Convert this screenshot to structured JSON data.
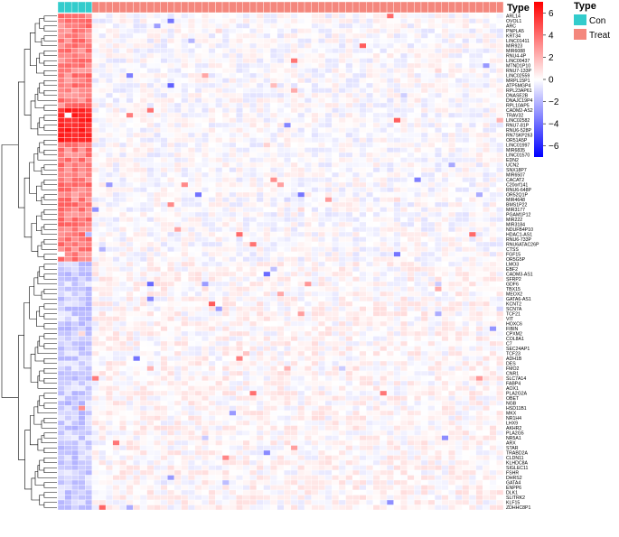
{
  "chart_data": {
    "type": "heatmap",
    "annotation": {
      "label": "Type",
      "legend_title": "Type",
      "groups": [
        {
          "name": "Con",
          "count": 5,
          "color": "#33cccc"
        },
        {
          "name": "Treat",
          "count": 60,
          "color": "#f4877d"
        }
      ]
    },
    "color_scale": {
      "ticks": [
        6,
        4,
        2,
        0,
        -2,
        -4,
        -6
      ],
      "range": [
        -7,
        7
      ],
      "stops": [
        {
          "value": -7,
          "color": "#0000ff"
        },
        {
          "value": 0,
          "color": "#ffffff"
        },
        {
          "value": 7,
          "color": "#ff0000"
        }
      ]
    },
    "row_dendrogram": true,
    "rows": [
      "ARL14",
      "OVOL1",
      "ARC",
      "PNPLA5",
      "KRT34",
      "LINC01411",
      "MIR923",
      "MIR6088",
      "RNU4-4P",
      "LINC00437",
      "MTND1P10",
      "RNU7-133P",
      "LINC02559",
      "MRPL15P1",
      "ATP5MGP4",
      "RPL23AP61",
      "DNASE2B",
      "DNAJC19P4",
      "RPL10AP5",
      "CADM2-AS2",
      "TRAV32",
      "LINC02582",
      "RNU7-81P",
      "RNU6-528P",
      "RN7SKP263",
      "OR51A5P",
      "LINC01997",
      "MIR6835",
      "LINC01570",
      "EDN2",
      "UCN2",
      "SNX18P7",
      "MIR6507",
      "CACAT2",
      "C20orf141",
      "RNU6-648P",
      "OR52Q1P",
      "MIR4648",
      "BMS1P22",
      "MIR3177",
      "PGAM1P12",
      "MIR222",
      "MIR3184",
      "NDUFB4P10",
      "HDAC1-AS1",
      "RNU6-733P",
      "RNU6ATAC26P",
      "CTSS",
      "FGF15",
      "OR5G5P",
      "LMO3",
      "EBF2",
      "CADM3-AS1",
      "SFRP2",
      "GDF6",
      "TBX15",
      "MEOX2",
      "GATA6-AS1",
      "KCNT2",
      "SCN7A",
      "TCF21",
      "VIT",
      "HOXC6",
      "FIBIN",
      "CPXM2",
      "COL8A1",
      "C7",
      "SEC24AP1",
      "TCF23",
      "ADH1B",
      "DES",
      "FMO2",
      "CNR1",
      "SLC7A14",
      "FABP4",
      "AOX1",
      "PLA2G2A",
      "OBET",
      "NGB",
      "HSD11B1",
      "MKX",
      "NR1H4",
      "LHX9",
      "AKHR2",
      "PLA2G5",
      "NR5A1",
      "ARX",
      "STAR",
      "TRABD2A",
      "CLDN11",
      "KLHDC8A",
      "SIGLEC11",
      "FSHR",
      "DHRS2",
      "GATA4",
      "ENPP6",
      "DLK1",
      "SLITRK2",
      "KLF15",
      "ZDHHC8P1"
    ]
  }
}
